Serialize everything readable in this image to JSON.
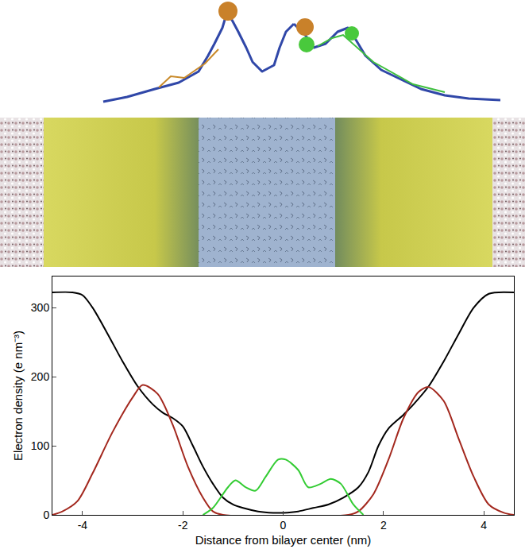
{
  "chart_data": {
    "type": "line",
    "x_label": "Distance from bilayer center (nm)",
    "y_label": "Electron density (e nm⁻³)",
    "xlim": [
      -4.6,
      4.6
    ],
    "xticks": [
      -4,
      -2,
      0,
      2,
      4
    ],
    "ylim": [
      0,
      345
    ],
    "yticks": [
      0,
      100,
      200,
      300
    ],
    "grid": false,
    "series": [
      {
        "color": "#000000",
        "x": [
          -4.6,
          -4.2,
          -4.0,
          -3.8,
          -3.5,
          -3.2,
          -2.9,
          -2.6,
          -2.4,
          -2.2,
          -2.0,
          -1.8,
          -1.6,
          -1.4,
          -1.2,
          -1.0,
          -0.8,
          -0.5,
          -0.2,
          0.0,
          0.3,
          0.6,
          0.9,
          1.2,
          1.5,
          1.7,
          1.9,
          2.1,
          2.4,
          2.6,
          2.9,
          3.2,
          3.5,
          3.8,
          4.1,
          4.6
        ],
        "values": [
          322,
          322,
          318,
          300,
          262,
          222,
          186,
          160,
          148,
          140,
          128,
          100,
          70,
          45,
          25,
          15,
          10,
          5,
          3,
          3,
          5,
          10,
          15,
          25,
          40,
          62,
          100,
          125,
          145,
          160,
          186,
          222,
          262,
          300,
          320,
          322
        ]
      },
      {
        "color": "#a3281e",
        "x": [
          -4.6,
          -4.4,
          -4.1,
          -3.8,
          -3.4,
          -3.0,
          -2.8,
          -2.5,
          -2.2,
          -1.9,
          -1.6,
          -1.4,
          -1.2,
          1.3,
          1.5,
          1.8,
          2.1,
          2.4,
          2.7,
          2.9,
          3.2,
          3.5,
          3.8,
          4.1,
          4.4,
          4.6
        ],
        "values": [
          0,
          5,
          20,
          60,
          120,
          170,
          188,
          175,
          130,
          70,
          25,
          5,
          0,
          0,
          5,
          30,
          80,
          140,
          178,
          185,
          165,
          110,
          55,
          15,
          3,
          0
        ]
      },
      {
        "color": "#33cc33",
        "x": [
          -1.6,
          -1.4,
          -1.1,
          -0.95,
          -0.75,
          -0.55,
          -0.35,
          -0.1,
          0.05,
          0.3,
          0.5,
          0.75,
          0.95,
          1.15,
          1.4,
          1.6
        ],
        "values": [
          0,
          10,
          40,
          50,
          40,
          35,
          55,
          80,
          80,
          65,
          40,
          45,
          52,
          45,
          15,
          0
        ]
      }
    ]
  }
}
